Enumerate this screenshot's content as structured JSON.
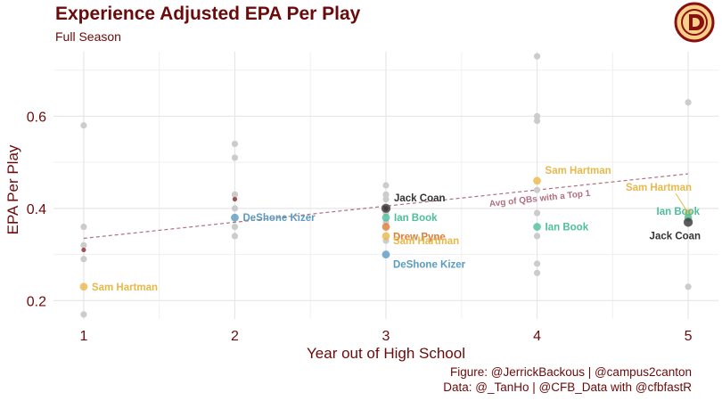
{
  "header": {
    "title": "Experience Adjusted EPA Per Play",
    "subtitle": "Full Season"
  },
  "caption": {
    "line1": "Figure: @JerrickBackous | @campus2canton",
    "line2": "Data: @_TanHo | @CFB_Data with @cfbfastR"
  },
  "colors": {
    "title": "#6b0a0a",
    "grey_point": "#cccccc",
    "sam_hartman": "#e8b84a",
    "deshone_kizer": "#5b9bc0",
    "jack_coan": "#333333",
    "ian_book": "#4dbf9a",
    "drew_pyne": "#e07b39",
    "avg_line": "#b07080",
    "logo_bg": "#f7d08a",
    "logo_ring": "#8a1010"
  },
  "chart_data": {
    "type": "scatter",
    "title": "Experience Adjusted EPA Per Play",
    "subtitle": "Full Season",
    "xlabel": "Year out of High School",
    "ylabel": "EPA Per Play",
    "xlim": [
      0.8,
      5.2
    ],
    "ylim": [
      0.16,
      0.74
    ],
    "x_ticks": [
      1,
      2,
      3,
      4,
      5
    ],
    "y_ticks": [
      0.2,
      0.4,
      0.6
    ],
    "y_tick_labels": [
      "0.2",
      "0.4",
      "0.6"
    ],
    "grid": true,
    "background_points": [
      {
        "x": 1,
        "y": 0.58
      },
      {
        "x": 1,
        "y": 0.36
      },
      {
        "x": 1,
        "y": 0.32
      },
      {
        "x": 1,
        "y": 0.29
      },
      {
        "x": 1,
        "y": 0.17
      },
      {
        "x": 2,
        "y": 0.54
      },
      {
        "x": 2,
        "y": 0.51
      },
      {
        "x": 2,
        "y": 0.43
      },
      {
        "x": 2,
        "y": 0.4
      },
      {
        "x": 2,
        "y": 0.36
      },
      {
        "x": 2,
        "y": 0.34
      },
      {
        "x": 3,
        "y": 0.45
      },
      {
        "x": 3,
        "y": 0.43
      },
      {
        "x": 3,
        "y": 0.42
      },
      {
        "x": 3,
        "y": 0.39
      },
      {
        "x": 3,
        "y": 0.37
      },
      {
        "x": 3,
        "y": 0.33
      },
      {
        "x": 4,
        "y": 0.73
      },
      {
        "x": 4,
        "y": 0.6
      },
      {
        "x": 4,
        "y": 0.59
      },
      {
        "x": 4,
        "y": 0.44
      },
      {
        "x": 4,
        "y": 0.39
      },
      {
        "x": 4,
        "y": 0.34
      },
      {
        "x": 4,
        "y": 0.28
      },
      {
        "x": 4,
        "y": 0.26
      },
      {
        "x": 5,
        "y": 0.63
      },
      {
        "x": 5,
        "y": 0.23
      }
    ],
    "team_avg_points": [
      {
        "x": 1,
        "y": 0.31
      },
      {
        "x": 2,
        "y": 0.42
      },
      {
        "x": 3,
        "y": 0.4
      }
    ],
    "highlighted": [
      {
        "name": "Sam Hartman",
        "x": 1,
        "y": 0.23,
        "color": "#e8b84a",
        "label_pos": "right"
      },
      {
        "name": "DeShone Kizer",
        "x": 2,
        "y": 0.38,
        "color": "#5b9bc0",
        "label_pos": "right"
      },
      {
        "name": "Jack Coan",
        "x": 3,
        "y": 0.4,
        "color": "#333333",
        "label_pos": "upright"
      },
      {
        "name": "Ian Book",
        "x": 3,
        "y": 0.38,
        "color": "#4dbf9a",
        "label_pos": "right"
      },
      {
        "name": "Drew Pyne",
        "x": 3,
        "y": 0.36,
        "color": "#e07b39",
        "label_pos": "downright"
      },
      {
        "name": "Sam Hartman",
        "x": 3,
        "y": 0.34,
        "color": "#e8b84a",
        "label_pos": "downright2"
      },
      {
        "name": "DeShone Kizer",
        "x": 3,
        "y": 0.3,
        "color": "#5b9bc0",
        "label_pos": "downright"
      },
      {
        "name": "Sam Hartman",
        "x": 4,
        "y": 0.46,
        "color": "#e8b84a",
        "label_pos": "upright"
      },
      {
        "name": "Ian Book",
        "x": 4,
        "y": 0.36,
        "color": "#4dbf9a",
        "label_pos": "right"
      },
      {
        "name": "Sam Hartman",
        "x": 5,
        "y": 0.39,
        "color": "#e8b84a",
        "label_pos": "upleft2"
      },
      {
        "name": "Ian Book",
        "x": 5,
        "y": 0.38,
        "color": "#4dbf9a",
        "label_pos": "upleft"
      },
      {
        "name": "Jack Coan",
        "x": 5,
        "y": 0.37,
        "color": "#333333",
        "label_pos": "downleft"
      }
    ],
    "trend_line": {
      "x": [
        1,
        5
      ],
      "y": [
        0.335,
        0.475
      ],
      "label": "Avg of QBs with a Top 1"
    },
    "trend_label_overlap": "on"
  }
}
